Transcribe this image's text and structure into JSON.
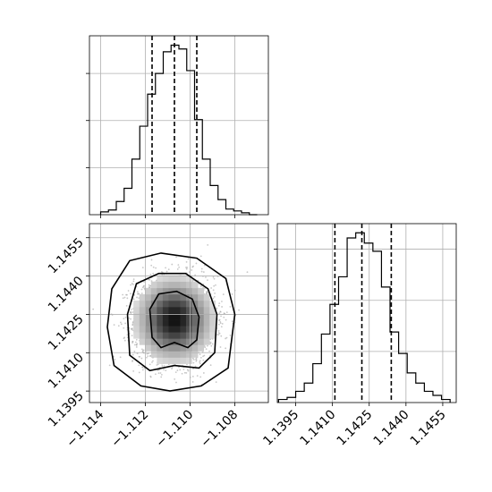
{
  "chart_data": [
    {
      "type": "histogram",
      "panel": "top-left",
      "xlim": [
        -1.1145,
        -1.1065
      ],
      "x_ticks": [
        -1.114,
        -1.112,
        -1.11,
        -1.108
      ],
      "y_tick_labels_shown": false,
      "grid": true,
      "bin_edges": [
        -1.114,
        -1.11365,
        -1.1133,
        -1.11295,
        -1.1126,
        -1.11225,
        -1.1119,
        -1.11155,
        -1.1112,
        -1.11085,
        -1.1105,
        -1.11015,
        -1.1098,
        -1.10945,
        -1.1091,
        -1.10875,
        -1.1084,
        -1.10805,
        -1.1077,
        -1.10735,
        -1.107
      ],
      "counts": [
        3,
        5,
        14,
        28,
        59,
        94,
        128,
        150,
        173,
        180,
        176,
        153,
        101,
        59,
        31,
        16,
        6,
        4,
        2,
        0
      ],
      "y_max": 190,
      "quantiles": [
        -1.1117,
        -1.1107,
        -1.1097
      ]
    },
    {
      "type": "contour-scatter",
      "panel": "bottom-left",
      "xlim": [
        -1.1145,
        -1.1065
      ],
      "ylim": [
        1.13905,
        1.14605
      ],
      "x_ticks": [
        -1.114,
        -1.112,
        -1.11,
        -1.108
      ],
      "x_tick_labels": [
        "−1.114",
        "−1.112",
        "−1.110",
        "−1.108"
      ],
      "y_ticks": [
        1.1395,
        1.141,
        1.1425,
        1.144,
        1.1455
      ],
      "y_tick_labels": [
        "1.1395",
        "1.1410",
        "1.1425",
        "1.1440",
        "1.1455"
      ],
      "grid": true,
      "center": [
        -1.1107,
        1.1423
      ],
      "sigma": [
        0.0009,
        0.00085
      ],
      "contours": [
        [
          [
            -1.1117,
            1.1416
          ],
          [
            -1.1113,
            1.1412
          ],
          [
            -1.1107,
            1.1414
          ],
          [
            -1.1101,
            1.1412
          ],
          [
            -1.1097,
            1.1415
          ],
          [
            -1.1096,
            1.1424
          ],
          [
            -1.1099,
            1.1431
          ],
          [
            -1.1106,
            1.1434
          ],
          [
            -1.1114,
            1.1433
          ],
          [
            -1.1118,
            1.1427
          ],
          [
            -1.1117,
            1.1416
          ]
        ],
        [
          [
            -1.1127,
            1.1409
          ],
          [
            -1.1118,
            1.1403
          ],
          [
            -1.1107,
            1.1405
          ],
          [
            -1.1096,
            1.1404
          ],
          [
            -1.1089,
            1.141
          ],
          [
            -1.1088,
            1.1425
          ],
          [
            -1.1092,
            1.1435
          ],
          [
            -1.1102,
            1.1441
          ],
          [
            -1.1114,
            1.1441
          ],
          [
            -1.1124,
            1.1437
          ],
          [
            -1.1128,
            1.1425
          ],
          [
            -1.1127,
            1.1409
          ]
        ],
        [
          [
            -1.1134,
            1.1405
          ],
          [
            -1.1122,
            1.1397
          ],
          [
            -1.1109,
            1.1395
          ],
          [
            -1.1095,
            1.1397
          ],
          [
            -1.1083,
            1.1404
          ],
          [
            -1.108,
            1.1425
          ],
          [
            -1.1084,
            1.1439
          ],
          [
            -1.1097,
            1.1447
          ],
          [
            -1.1113,
            1.1449
          ],
          [
            -1.1127,
            1.1446
          ],
          [
            -1.1135,
            1.1435
          ],
          [
            -1.1137,
            1.142
          ],
          [
            -1.1134,
            1.1405
          ]
        ]
      ]
    },
    {
      "type": "histogram",
      "panel": "bottom-right",
      "xlim": [
        1.13875,
        1.14605
      ],
      "x_ticks": [
        1.1395,
        1.141,
        1.1425,
        1.144,
        1.1455
      ],
      "x_tick_labels": [
        "1.1395",
        "1.1410",
        "1.1425",
        "1.1440",
        "1.1455"
      ],
      "y_tick_labels_shown": false,
      "grid": true,
      "bin_edges": [
        1.1388,
        1.13915,
        1.1395,
        1.13985,
        1.1402,
        1.14055,
        1.1409,
        1.14125,
        1.1416,
        1.14195,
        1.1423,
        1.14265,
        1.143,
        1.14335,
        1.1437,
        1.14405,
        1.1444,
        1.14475,
        1.1451,
        1.14545,
        1.1458
      ],
      "counts": [
        3,
        5,
        11,
        19,
        38,
        67,
        96,
        123,
        161,
        166,
        156,
        148,
        113,
        69,
        48,
        29,
        19,
        11,
        7,
        3
      ],
      "y_max": 175,
      "quantiles": [
        1.1411,
        1.1422,
        1.1434
      ]
    }
  ]
}
